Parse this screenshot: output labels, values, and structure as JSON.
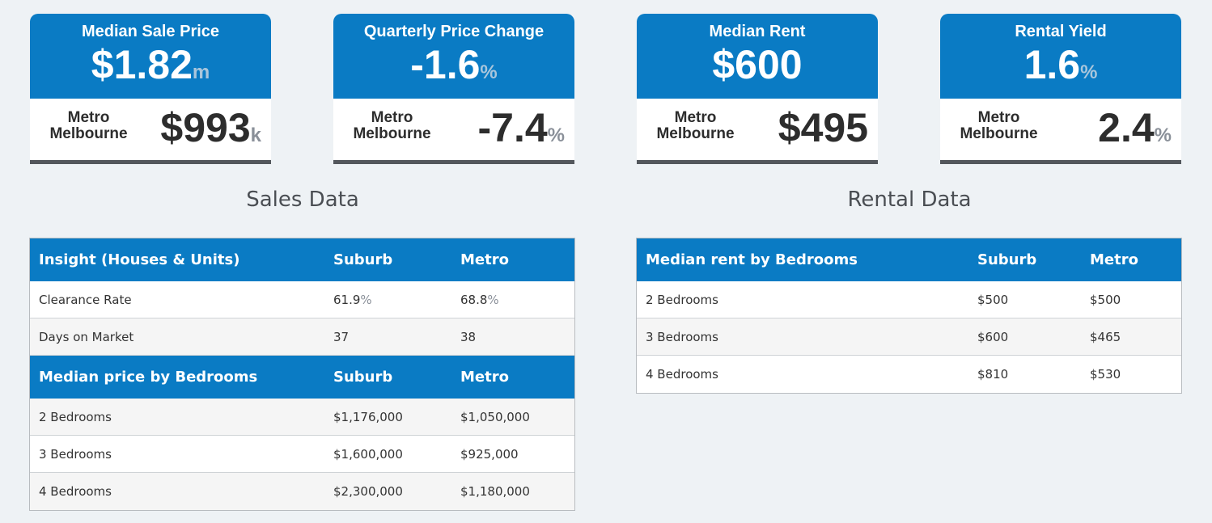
{
  "cards": [
    {
      "title": "Median Sale Price",
      "value": "$1.82",
      "value_unit": "m",
      "metro_label_1": "Metro",
      "metro_label_2": "Melbourne",
      "metro_value": "$993",
      "metro_unit": "k"
    },
    {
      "title": "Quarterly Price Change",
      "value": "-1.6",
      "value_unit": "%",
      "metro_label_1": "Metro",
      "metro_label_2": "Melbourne",
      "metro_value": "-7.4",
      "metro_unit": "%"
    },
    {
      "title": "Median Rent",
      "value": "$600",
      "value_unit": "",
      "metro_label_1": "Metro",
      "metro_label_2": "Melbourne",
      "metro_value": "$495",
      "metro_unit": ""
    },
    {
      "title": "Rental Yield",
      "value": "1.6",
      "value_unit": "%",
      "metro_label_1": "Metro",
      "metro_label_2": "Melbourne",
      "metro_value": "2.4",
      "metro_unit": "%"
    }
  ],
  "sales": {
    "title": "Sales Data",
    "insight_header": {
      "label": "Insight (Houses & Units)",
      "suburb": "Suburb",
      "metro": "Metro"
    },
    "insight_rows": [
      {
        "label": "Clearance Rate",
        "suburb": "61.9",
        "suburb_unit": "%",
        "metro": "68.8",
        "metro_unit": "%"
      },
      {
        "label": "Days on Market",
        "suburb": "37",
        "metro": "38"
      }
    ],
    "bedroom_header": {
      "label": "Median price by Bedrooms",
      "suburb": "Suburb",
      "metro": "Metro"
    },
    "bedroom_rows": [
      {
        "label": "2 Bedrooms",
        "suburb": "$1,176,000",
        "metro": "$1,050,000"
      },
      {
        "label": "3 Bedrooms",
        "suburb": "$1,600,000",
        "metro": "$925,000"
      },
      {
        "label": "4 Bedrooms",
        "suburb": "$2,300,000",
        "metro": "$1,180,000"
      }
    ]
  },
  "rental": {
    "title": "Rental Data",
    "header": {
      "label": "Median rent by Bedrooms",
      "suburb": "Suburb",
      "metro": "Metro"
    },
    "rows": [
      {
        "label": "2 Bedrooms",
        "suburb": "$500",
        "metro": "$500"
      },
      {
        "label": "3 Bedrooms",
        "suburb": "$600",
        "metro": "$465"
      },
      {
        "label": "4 Bedrooms",
        "suburb": "$810",
        "metro": "$530"
      }
    ]
  }
}
